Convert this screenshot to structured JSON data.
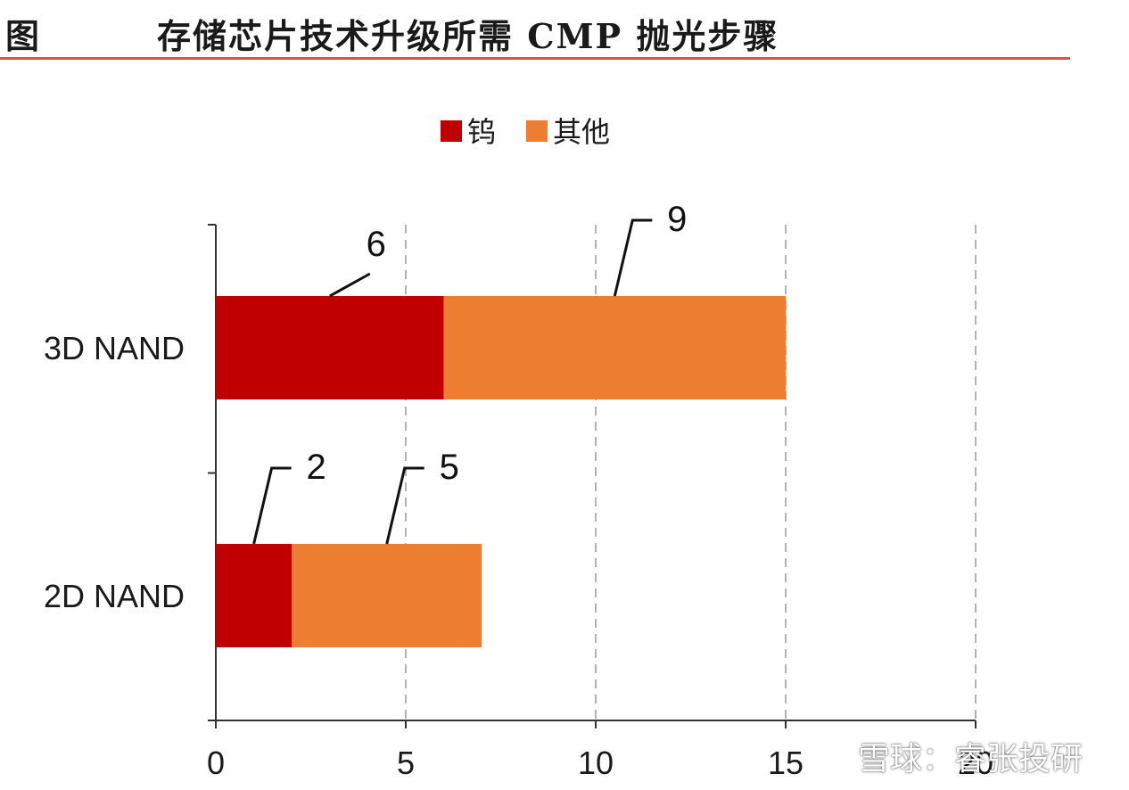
{
  "header": {
    "figure_label": "图",
    "title": "存储芯片技术升级所需 CMP 抛光步骤"
  },
  "colors": {
    "tungsten": "#c00000",
    "other": "#ed7d31",
    "title_rule": "#d9534f",
    "axis": "#333333",
    "grid": "#9a9a9a"
  },
  "chart_data": {
    "type": "bar",
    "orientation": "horizontal",
    "stacked": true,
    "categories": [
      "3D NAND",
      "2D NAND"
    ],
    "series": [
      {
        "name": "钨",
        "values": [
          6,
          2
        ]
      },
      {
        "name": "其他",
        "values": [
          9,
          5
        ]
      }
    ],
    "data_labels": [
      [
        "6",
        "9"
      ],
      [
        "2",
        "5"
      ]
    ],
    "xlim": [
      0,
      20
    ],
    "xticks": [
      "0",
      "5",
      "10",
      "15",
      "20"
    ],
    "grid": "vertical dashed",
    "legend": "top-center",
    "title": "",
    "xlabel": "",
    "ylabel": ""
  },
  "watermark": {
    "text": "雪球：睿张投研"
  }
}
